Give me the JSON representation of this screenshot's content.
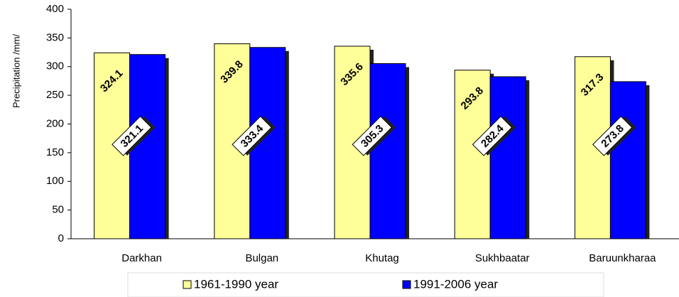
{
  "chart_data": {
    "type": "bar",
    "y_label": "Precipitation  /mm/",
    "categories": [
      "Darkhan",
      "Bulgan",
      "Khutag",
      "Sukhbaatar",
      "Baruunkharaa"
    ],
    "series": [
      {
        "name": "1961-1990 year",
        "color": "#ffff99",
        "values": [
          324.1,
          339.8,
          335.6,
          293.8,
          317.3
        ]
      },
      {
        "name": "1991-2006 year",
        "color": "#0000ff",
        "values": [
          321.1,
          333.4,
          305.3,
          282.4,
          273.8
        ]
      }
    ],
    "ylim": [
      0,
      400
    ],
    "yticks": [
      0,
      50,
      100,
      150,
      200,
      250,
      300,
      350,
      400
    ],
    "grid": false,
    "legend": "bottom"
  }
}
